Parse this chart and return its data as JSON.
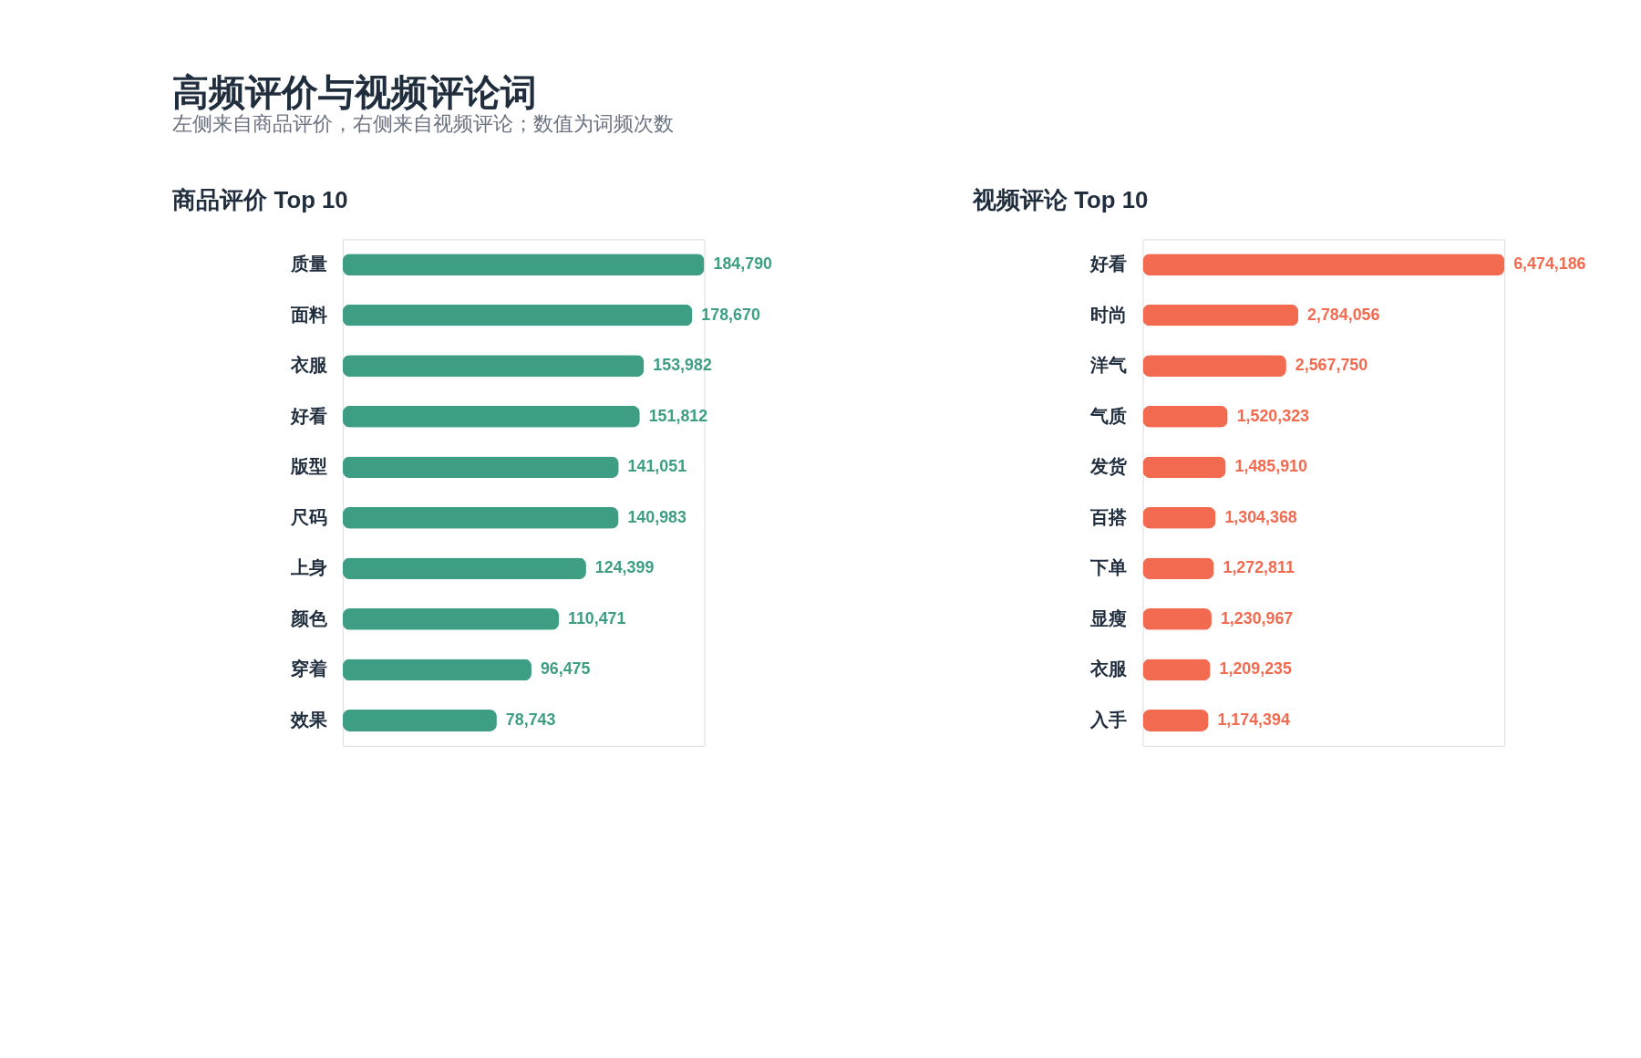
{
  "chart_data": [
    {
      "type": "other",
      "title": "高频评价与视频评论词",
      "subtitle": "左侧来自商品评价，右侧来自视频评论；数值为词频次数"
    },
    {
      "type": "bar",
      "orientation": "horizontal",
      "title": "商品评价 Top 10",
      "categories": [
        "质量",
        "面料",
        "衣服",
        "好看",
        "版型",
        "尺码",
        "上身",
        "颜色",
        "穿着",
        "效果"
      ],
      "values": [
        184790,
        178670,
        153982,
        151812,
        141051,
        140983,
        124399,
        110471,
        96475,
        78743
      ],
      "value_labels": [
        "184,790",
        "178,670",
        "153,982",
        "151,812",
        "141,051",
        "140,983",
        "124,399",
        "110,471",
        "96,475",
        "78,743"
      ],
      "color": "#3d9e84",
      "tick_labels": "y"
    },
    {
      "type": "bar",
      "orientation": "horizontal",
      "title": "视频评论 Top 10",
      "categories": [
        "好看",
        "时尚",
        "洋气",
        "气质",
        "发货",
        "百搭",
        "下单",
        "显瘦",
        "衣服",
        "入手"
      ],
      "values": [
        6474186,
        2784056,
        2567750,
        1520323,
        1485910,
        1304368,
        1272811,
        1230967,
        1209235,
        1174394
      ],
      "value_labels": [
        "6,474,186",
        "2,784,056",
        "2,567,750",
        "1,520,323",
        "1,485,910",
        "1,304,368",
        "1,272,811",
        "1,230,967",
        "1,209,235",
        "1,174,394"
      ],
      "color": "#f26b50",
      "tick_labels": "y"
    }
  ]
}
